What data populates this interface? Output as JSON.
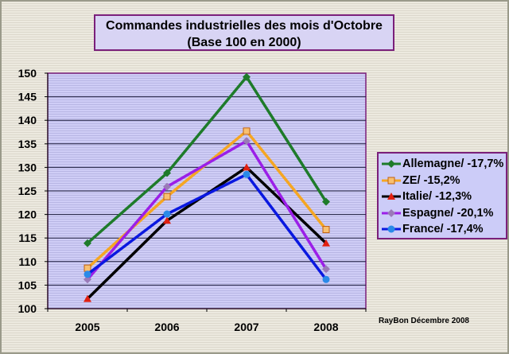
{
  "chart_data": {
    "type": "line",
    "title": "Commandes industrielles des mois d'Octobre",
    "subtitle": "(Base 100 en 2000)",
    "categories": [
      "2005",
      "2006",
      "2007",
      "2008"
    ],
    "ylim": [
      100,
      150
    ],
    "yticks": [
      "100",
      "105",
      "110",
      "115",
      "120",
      "125",
      "130",
      "135",
      "140",
      "145",
      "150"
    ],
    "grid": true,
    "legend_position": "right",
    "series": [
      {
        "name": "Allemagne/ -17,7%",
        "color": "#1e7b2a",
        "marker": "diamond",
        "values": [
          113.9,
          128.8,
          149.2,
          122.7
        ]
      },
      {
        "name": "ZE/ -15,2%",
        "color": "#f5a623",
        "marker": "square",
        "values": [
          108.6,
          123.8,
          137.7,
          116.8
        ]
      },
      {
        "name": "Italie/ -12,3%",
        "color": "#000000",
        "marker": "triangle",
        "markerColor": "#e02010",
        "values": [
          102.1,
          118.7,
          130.0,
          113.9
        ]
      },
      {
        "name": "Espagne/ -20,1%",
        "color": "#9b1fe8",
        "marker": "diamond",
        "markerColor": "#9a7ab8",
        "values": [
          106.2,
          125.9,
          135.6,
          108.4
        ]
      },
      {
        "name": "France/ -17,4%",
        "color": "#0a18e0",
        "marker": "circle",
        "markerColor": "#2a8ae8",
        "values": [
          107.3,
          120.1,
          128.5,
          106.2
        ]
      }
    ]
  },
  "credit": "RayBon Décembre 2008"
}
